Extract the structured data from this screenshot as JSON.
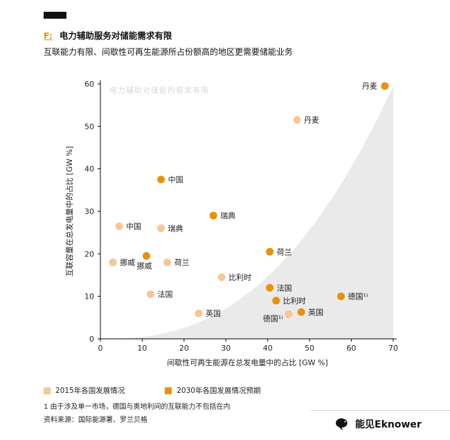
{
  "header": {
    "fig_label": "F:",
    "title": "电力辅助服务对储能需求有限",
    "subtitle": "互联能力有限、间歇性可再生能源所占份额高的地区更需要储能业务"
  },
  "chart_data": {
    "type": "scatter",
    "watermark": "电力辅助对储能的需求有限",
    "xlabel": "间歇性可再生能源在总发电量中的占比 [GW %]",
    "ylabel": "互联容量在总发电量中的占比 [GW %]",
    "xlim": [
      0,
      70
    ],
    "ylim": [
      0,
      60
    ],
    "xticks": [
      0,
      10,
      20,
      30,
      40,
      50,
      60,
      70
    ],
    "yticks": [
      0,
      10,
      20,
      30,
      40,
      50,
      60
    ],
    "grid": false,
    "legend_position": "bottom-left",
    "region": {
      "description": "shaded threshold area rising to upper right",
      "max_y": 59.5,
      "exponent": 2.5,
      "color": "#EAEAEA"
    },
    "series": [
      {
        "name": "2015年各国发展情况",
        "color": "#F4C794",
        "points": [
          {
            "label": "丹麦",
            "x": 47,
            "y": 51.5,
            "lp": "right"
          },
          {
            "label": "中国",
            "x": 4.5,
            "y": 26.5,
            "lp": "right"
          },
          {
            "label": "瑞典",
            "x": 14.5,
            "y": 26,
            "lp": "right"
          },
          {
            "label": "挪威",
            "x": 3,
            "y": 18,
            "lp": "right"
          },
          {
            "label": "荷兰",
            "x": 16,
            "y": 18,
            "lp": "right"
          },
          {
            "label": "法国",
            "x": 12,
            "y": 10.5,
            "lp": "right"
          },
          {
            "label": "比利时",
            "x": 29,
            "y": 14.5,
            "lp": "right"
          },
          {
            "label": "英国",
            "x": 23.5,
            "y": 6,
            "lp": "right"
          },
          {
            "label": "德国¹⁾",
            "x": 45,
            "y": 5.8,
            "lp": "left-below"
          }
        ]
      },
      {
        "name": "2030年各国发展情况预期",
        "color": "#E8910D",
        "points": [
          {
            "label": "丹麦",
            "x": 68,
            "y": 59.5,
            "lp": "left"
          },
          {
            "label": "中国",
            "x": 14.5,
            "y": 37.5,
            "lp": "right"
          },
          {
            "label": "瑞典",
            "x": 27,
            "y": 29,
            "lp": "right"
          },
          {
            "label": "挪威",
            "x": 11,
            "y": 19.5,
            "lp": "below-left"
          },
          {
            "label": "荷兰",
            "x": 40.5,
            "y": 20.5,
            "lp": "right"
          },
          {
            "label": "法国",
            "x": 40.5,
            "y": 12,
            "lp": "right"
          },
          {
            "label": "比利时",
            "x": 42,
            "y": 9,
            "lp": "right"
          },
          {
            "label": "德国¹⁾",
            "x": 57.5,
            "y": 10,
            "lp": "right"
          },
          {
            "label": "英国",
            "x": 48,
            "y": 6.3,
            "lp": "right"
          }
        ]
      }
    ]
  },
  "footnote": "1 由于涉及单一市场，德国与奥地利间的互联能力不包括在内",
  "source": "资料来源：国际能源署、罗兰贝格",
  "brand": {
    "name": "能见Eknower"
  }
}
